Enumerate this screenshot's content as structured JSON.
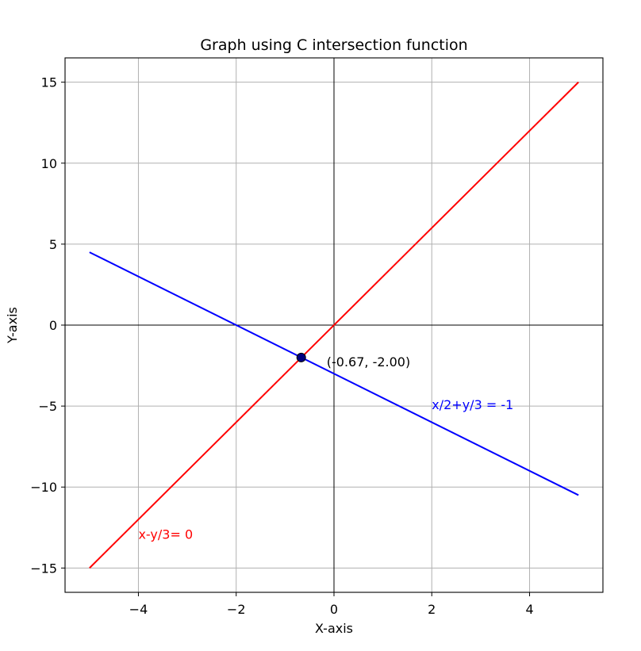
{
  "chart_data": {
    "type": "line",
    "title": "Graph using C intersection function",
    "xlabel": "X-axis",
    "ylabel": "Y-axis",
    "xlim": [
      -5.5,
      5.5
    ],
    "ylim": [
      -16.5,
      16.5
    ],
    "grid": true,
    "xticks": [
      -4,
      -2,
      0,
      2,
      4
    ],
    "yticks": [
      -15,
      -10,
      -5,
      0,
      5,
      10,
      15
    ],
    "xtick_labels": [
      "−4",
      "−2",
      "0",
      "2",
      "4"
    ],
    "ytick_labels": [
      "−15",
      "−10",
      "−5",
      "0",
      "5",
      "10",
      "15"
    ],
    "series": [
      {
        "color": "#ff0000",
        "x": [
          -5,
          5
        ],
        "y": [
          -15,
          15
        ]
      },
      {
        "color": "#0000ff",
        "x": [
          -5,
          5
        ],
        "y": [
          4.5,
          -10.5
        ]
      }
    ],
    "intersection_point": {
      "x": -0.67,
      "y": -2.0,
      "color": "#000080"
    },
    "annotations": [
      {
        "text": "(-0.67, -2.00)",
        "x": -0.15,
        "y": -2.25,
        "color": "#000000"
      },
      {
        "text": "x/2+y/3 = -1",
        "x": 2.0,
        "y": -4.9,
        "color": "#0000ff"
      },
      {
        "text": "x-y/3= 0",
        "x": -4.0,
        "y": -12.9,
        "color": "#ff0000"
      }
    ]
  }
}
